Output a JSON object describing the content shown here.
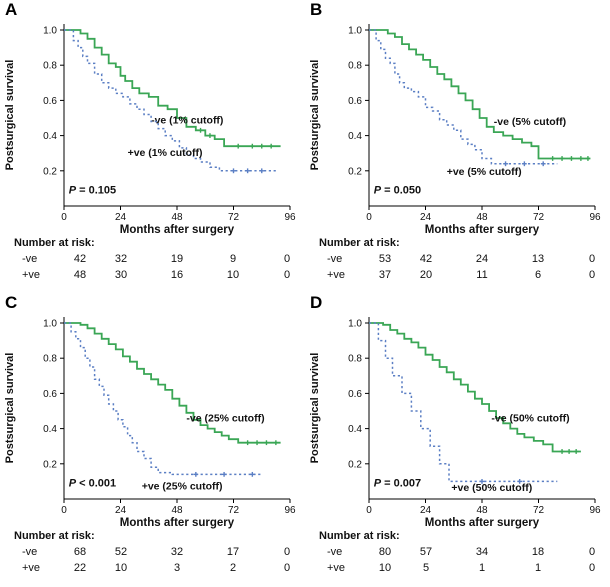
{
  "figure": {
    "background": "#ffffff"
  },
  "colors": {
    "negative": "#3aa655",
    "positive": "#5b7fc4",
    "axis": "#000000",
    "text": "#111111"
  },
  "axes": {
    "y_label": "Postsurgical survival",
    "x_label": "Months after surgery",
    "risk_header": "Number at risk:",
    "x_ticks": [
      0,
      24,
      48,
      72,
      96
    ],
    "y_ticks": [
      0.2,
      0.4,
      0.6,
      0.8,
      1.0
    ],
    "x_range": [
      0,
      96
    ],
    "y_range": [
      0,
      1.0
    ],
    "grid": false,
    "legend_position": "inside-right"
  },
  "chart_data": [
    {
      "type": "line",
      "letter": "A",
      "p_value": {
        "symbol": "P",
        "text": " = 0.105"
      },
      "series": [
        {
          "name": "negative",
          "legend": "-ve (1% cutoff)",
          "style": "solid",
          "color": "negative",
          "n": 42,
          "points": [
            [
              0,
              1.0
            ],
            [
              7,
              0.98
            ],
            [
              10,
              0.95
            ],
            [
              13,
              0.9
            ],
            [
              16,
              0.86
            ],
            [
              19,
              0.81
            ],
            [
              22,
              0.79
            ],
            [
              24,
              0.74
            ],
            [
              26,
              0.71
            ],
            [
              29,
              0.67
            ],
            [
              32,
              0.64
            ],
            [
              36,
              0.62
            ],
            [
              40,
              0.57
            ],
            [
              44,
              0.55
            ],
            [
              48,
              0.5
            ],
            [
              52,
              0.45
            ],
            [
              56,
              0.43
            ],
            [
              60,
              0.4
            ],
            [
              64,
              0.38
            ],
            [
              68,
              0.34
            ],
            [
              92,
              0.34
            ]
          ],
          "censors": [
            58,
            62,
            74,
            80,
            84,
            88
          ],
          "legend_anchor": {
            "m": 37,
            "v": 0.47
          }
        },
        {
          "name": "positive",
          "legend": "+ve (1% cutoff)",
          "style": "dashed",
          "color": "positive",
          "n": 48,
          "points": [
            [
              0,
              1.0
            ],
            [
              4,
              0.94
            ],
            [
              6,
              0.9
            ],
            [
              8,
              0.85
            ],
            [
              10,
              0.81
            ],
            [
              13,
              0.75
            ],
            [
              16,
              0.7
            ],
            [
              19,
              0.67
            ],
            [
              22,
              0.64
            ],
            [
              25,
              0.62
            ],
            [
              28,
              0.58
            ],
            [
              31,
              0.55
            ],
            [
              34,
              0.52
            ],
            [
              37,
              0.48
            ],
            [
              40,
              0.44
            ],
            [
              43,
              0.4
            ],
            [
              46,
              0.37
            ],
            [
              49,
              0.33
            ],
            [
              52,
              0.29
            ],
            [
              55,
              0.27
            ],
            [
              58,
              0.25
            ],
            [
              62,
              0.22
            ],
            [
              66,
              0.2
            ],
            [
              90,
              0.2
            ]
          ],
          "censors": [
            72,
            78,
            84
          ],
          "legend_anchor": {
            "m": 27,
            "v": 0.285
          }
        }
      ],
      "risk": {
        "rows": [
          {
            "label": "-ve",
            "values": [
              42,
              32,
              19,
              9,
              0
            ]
          },
          {
            "label": "+ve",
            "values": [
              48,
              30,
              16,
              10,
              0
            ]
          }
        ]
      }
    },
    {
      "type": "line",
      "letter": "B",
      "p_value": {
        "symbol": "P",
        "text": " = 0.050"
      },
      "series": [
        {
          "name": "negative",
          "legend": "-ve (5% cutoff)",
          "style": "solid",
          "color": "negative",
          "n": 53,
          "points": [
            [
              0,
              1.0
            ],
            [
              8,
              0.98
            ],
            [
              11,
              0.96
            ],
            [
              14,
              0.92
            ],
            [
              17,
              0.89
            ],
            [
              20,
              0.86
            ],
            [
              23,
              0.83
            ],
            [
              26,
              0.79
            ],
            [
              29,
              0.75
            ],
            [
              32,
              0.72
            ],
            [
              35,
              0.68
            ],
            [
              38,
              0.64
            ],
            [
              41,
              0.6
            ],
            [
              44,
              0.55
            ],
            [
              47,
              0.5
            ],
            [
              50,
              0.45
            ],
            [
              53,
              0.42
            ],
            [
              57,
              0.4
            ],
            [
              61,
              0.38
            ],
            [
              65,
              0.36
            ],
            [
              69,
              0.34
            ],
            [
              72,
              0.27
            ],
            [
              94,
              0.27
            ]
          ],
          "censors": [
            78,
            82,
            86,
            90,
            93
          ],
          "legend_anchor": {
            "m": 53,
            "v": 0.46
          }
        },
        {
          "name": "positive",
          "legend": "+ve (5% cutoff)",
          "style": "dashed",
          "color": "positive",
          "n": 37,
          "points": [
            [
              0,
              1.0
            ],
            [
              3,
              0.94
            ],
            [
              5,
              0.89
            ],
            [
              7,
              0.84
            ],
            [
              9,
              0.81
            ],
            [
              11,
              0.75
            ],
            [
              13,
              0.7
            ],
            [
              15,
              0.67
            ],
            [
              18,
              0.65
            ],
            [
              21,
              0.62
            ],
            [
              24,
              0.56
            ],
            [
              27,
              0.54
            ],
            [
              30,
              0.49
            ],
            [
              33,
              0.46
            ],
            [
              36,
              0.43
            ],
            [
              39,
              0.38
            ],
            [
              42,
              0.35
            ],
            [
              45,
              0.32
            ],
            [
              48,
              0.27
            ],
            [
              52,
              0.24
            ],
            [
              80,
              0.24
            ]
          ],
          "censors": [
            58,
            66,
            74
          ],
          "legend_anchor": {
            "m": 33,
            "v": 0.175
          }
        }
      ],
      "risk": {
        "rows": [
          {
            "label": "-ve",
            "values": [
              53,
              42,
              24,
              13,
              0
            ]
          },
          {
            "label": "+ve",
            "values": [
              37,
              20,
              11,
              6,
              0
            ]
          }
        ]
      }
    },
    {
      "type": "line",
      "letter": "C",
      "p_value": {
        "symbol": "P",
        "text": " < 0.001"
      },
      "series": [
        {
          "name": "negative",
          "legend": "-ve (25% cutoff)",
          "style": "solid",
          "color": "negative",
          "n": 68,
          "points": [
            [
              0,
              1.0
            ],
            [
              7,
              0.99
            ],
            [
              10,
              0.97
            ],
            [
              13,
              0.94
            ],
            [
              16,
              0.91
            ],
            [
              19,
              0.88
            ],
            [
              22,
              0.85
            ],
            [
              25,
              0.81
            ],
            [
              28,
              0.78
            ],
            [
              31,
              0.74
            ],
            [
              34,
              0.71
            ],
            [
              37,
              0.68
            ],
            [
              40,
              0.65
            ],
            [
              43,
              0.62
            ],
            [
              46,
              0.57
            ],
            [
              49,
              0.53
            ],
            [
              52,
              0.49
            ],
            [
              55,
              0.45
            ],
            [
              58,
              0.42
            ],
            [
              61,
              0.4
            ],
            [
              64,
              0.38
            ],
            [
              67,
              0.36
            ],
            [
              70,
              0.34
            ],
            [
              74,
              0.32
            ],
            [
              92,
              0.32
            ]
          ],
          "censors": [
            78,
            82,
            86,
            90
          ],
          "legend_anchor": {
            "m": 52,
            "v": 0.44
          }
        },
        {
          "name": "positive",
          "legend": "+ve (25% cutoff)",
          "style": "dashed",
          "color": "positive",
          "n": 22,
          "points": [
            [
              0,
              1.0
            ],
            [
              3,
              0.95
            ],
            [
              5,
              0.91
            ],
            [
              7,
              0.86
            ],
            [
              9,
              0.8
            ],
            [
              11,
              0.75
            ],
            [
              13,
              0.68
            ],
            [
              15,
              0.64
            ],
            [
              17,
              0.59
            ],
            [
              19,
              0.54
            ],
            [
              21,
              0.5
            ],
            [
              23,
              0.45
            ],
            [
              25,
              0.41
            ],
            [
              27,
              0.36
            ],
            [
              29,
              0.32
            ],
            [
              31,
              0.27
            ],
            [
              34,
              0.23
            ],
            [
              37,
              0.18
            ],
            [
              40,
              0.15
            ],
            [
              46,
              0.14
            ],
            [
              84,
              0.14
            ]
          ],
          "censors": [
            56,
            68,
            80
          ],
          "legend_anchor": {
            "m": 33,
            "v": 0.055
          }
        }
      ],
      "risk": {
        "rows": [
          {
            "label": "-ve",
            "values": [
              68,
              52,
              32,
              17,
              0
            ]
          },
          {
            "label": "+ve",
            "values": [
              22,
              10,
              3,
              2,
              0
            ]
          }
        ]
      }
    },
    {
      "type": "line",
      "letter": "D",
      "p_value": {
        "symbol": "P",
        "text": " = 0.007"
      },
      "series": [
        {
          "name": "negative",
          "legend": "-ve (50% cutoff)",
          "style": "solid",
          "color": "negative",
          "n": 80,
          "points": [
            [
              0,
              1.0
            ],
            [
              6,
              0.99
            ],
            [
              9,
              0.96
            ],
            [
              12,
              0.94
            ],
            [
              15,
              0.91
            ],
            [
              18,
              0.89
            ],
            [
              21,
              0.86
            ],
            [
              24,
              0.82
            ],
            [
              27,
              0.79
            ],
            [
              30,
              0.75
            ],
            [
              33,
              0.72
            ],
            [
              36,
              0.68
            ],
            [
              39,
              0.65
            ],
            [
              42,
              0.61
            ],
            [
              45,
              0.57
            ],
            [
              48,
              0.54
            ],
            [
              51,
              0.5
            ],
            [
              54,
              0.46
            ],
            [
              57,
              0.43
            ],
            [
              60,
              0.4
            ],
            [
              63,
              0.37
            ],
            [
              66,
              0.35
            ],
            [
              70,
              0.33
            ],
            [
              74,
              0.31
            ],
            [
              78,
              0.27
            ],
            [
              90,
              0.27
            ]
          ],
          "censors": [
            82,
            85,
            88
          ],
          "legend_anchor": {
            "m": 52,
            "v": 0.44
          }
        },
        {
          "name": "positive",
          "legend": "+ve (50% cutoff)",
          "style": "dashed",
          "color": "positive",
          "n": 10,
          "points": [
            [
              0,
              1.0
            ],
            [
              4,
              0.9
            ],
            [
              7,
              0.8
            ],
            [
              10,
              0.7
            ],
            [
              14,
              0.6
            ],
            [
              18,
              0.5
            ],
            [
              22,
              0.4
            ],
            [
              26,
              0.3
            ],
            [
              30,
              0.2
            ],
            [
              34,
              0.1
            ],
            [
              80,
              0.1
            ]
          ],
          "censors": [
            48,
            64
          ],
          "legend_anchor": {
            "m": 35,
            "v": 0.045
          }
        }
      ],
      "risk": {
        "rows": [
          {
            "label": "-ve",
            "values": [
              80,
              57,
              34,
              18,
              0
            ]
          },
          {
            "label": "+ve",
            "values": [
              10,
              5,
              1,
              1,
              0
            ]
          }
        ]
      }
    }
  ]
}
